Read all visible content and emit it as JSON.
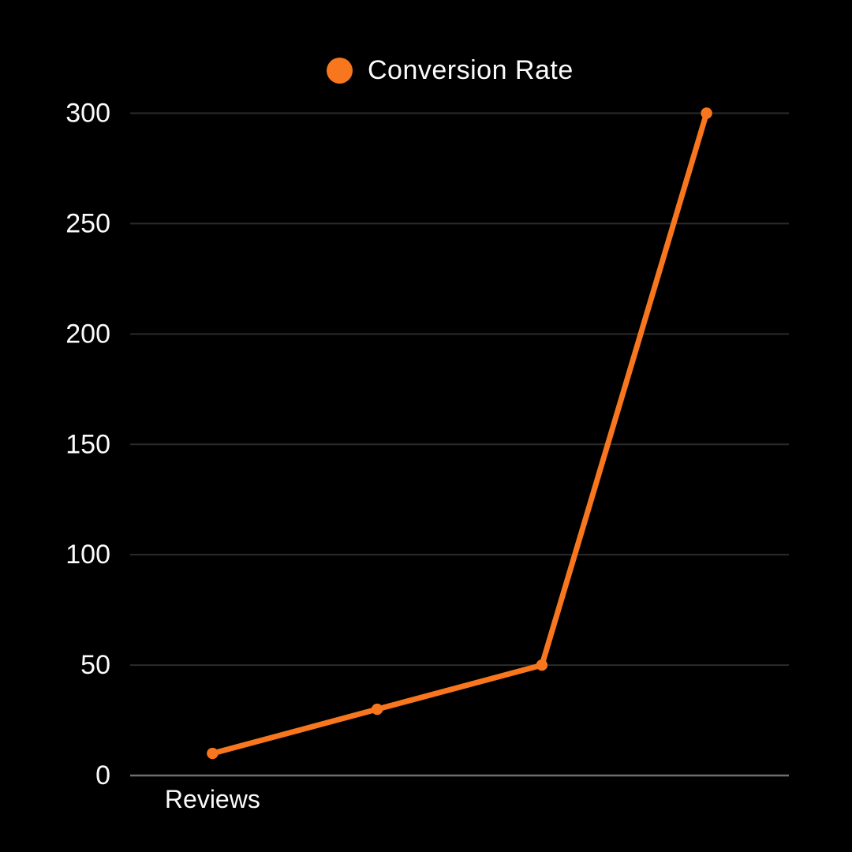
{
  "colors": {
    "background": "#000000",
    "text": "#FBFBFB",
    "grid": "#2B2B2B",
    "axis": "#6E6E6E",
    "series": "#F8771E"
  },
  "chart_data": {
    "type": "line",
    "title": "",
    "xlabel": "",
    "ylabel": "",
    "categories": [
      "Reviews",
      "",
      "",
      ""
    ],
    "series": [
      {
        "name": "Conversion Rate",
        "values": [
          10,
          30,
          50,
          300
        ]
      }
    ],
    "ylim": [
      0,
      300
    ],
    "yticks": [
      0,
      50,
      100,
      150,
      200,
      250,
      300
    ],
    "grid": true,
    "legend_position": "top"
  }
}
